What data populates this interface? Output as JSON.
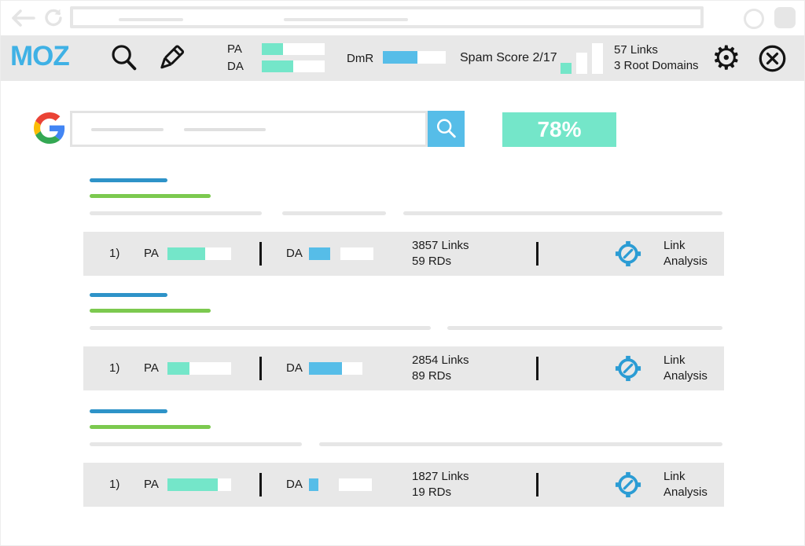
{
  "colors": {
    "teal": "#74E6C9",
    "blue": "#56BDE8",
    "moz_blue": "#3FB1E5",
    "title_blue": "#2E93C8",
    "green": "#7CC94F",
    "panel_gray": "#E8E8E8",
    "placeholder_gray": "#E6E6E6",
    "chrome_gray": "#E6E6E6",
    "link_icon_blue": "#2B9CD4"
  },
  "toolbar": {
    "logo": "MOZ",
    "pa_label": "PA",
    "da_label": "DA",
    "dmr_label": "DmR",
    "pa_fill": 27,
    "da_fill": 40,
    "dmr_fill": 44,
    "spam_score": "Spam Score 2/17",
    "spam_chart": [
      14,
      27,
      39
    ],
    "links_count": "57 Links",
    "root_domains": "3 Root Domains",
    "gear_glyph": "⚙"
  },
  "search": {
    "badge": "78%"
  },
  "results": {
    "labels": {
      "rank": "1)",
      "pa": "PA",
      "da": "DA",
      "action": "Link Analysis"
    },
    "rows": [
      {
        "pa_fill": 48,
        "da_blue": 27,
        "da_gap": 13,
        "da_white": 42,
        "links": "3857 Links",
        "rds": "59 RDs"
      },
      {
        "pa_fill": 28,
        "da_blue": 42,
        "da_gap": 0,
        "da_white": 26,
        "links": "2854 Links",
        "rds": "89 RDs"
      },
      {
        "pa_fill": 64,
        "da_blue": 12,
        "da_gap": 26,
        "da_white": 42,
        "links": "1827 Links",
        "rds": "19 RDs"
      }
    ]
  }
}
